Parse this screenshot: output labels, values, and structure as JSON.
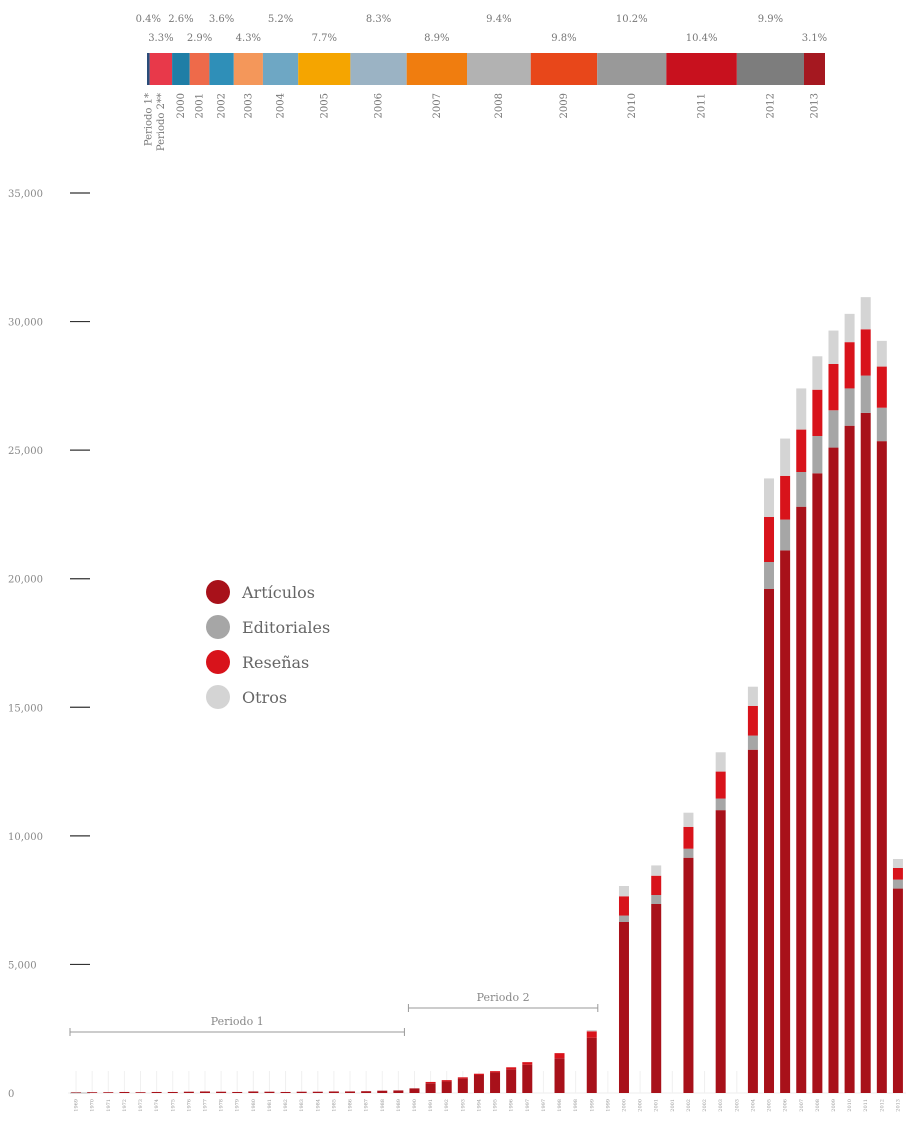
{
  "chart_data": [
    {
      "type": "bar",
      "orientation": "horizontal-stacked-100",
      "segments": [
        {
          "label": "Periodo 1*",
          "percent": "0.4%",
          "value": 0.4,
          "color": "#2a4d7a"
        },
        {
          "label": "Periodo 2**",
          "percent": "3.3%",
          "value": 3.3,
          "color": "#e8394a"
        },
        {
          "label": "2000",
          "percent": "2.6%",
          "value": 2.6,
          "color": "#1f7ea6"
        },
        {
          "label": "2001",
          "percent": "2.9%",
          "value": 2.9,
          "color": "#ee6a4a"
        },
        {
          "label": "2002",
          "percent": "3.6%",
          "value": 3.6,
          "color": "#2f8fb8"
        },
        {
          "label": "2003",
          "percent": "4.3%",
          "value": 4.3,
          "color": "#f4975a"
        },
        {
          "label": "2004",
          "percent": "5.2%",
          "value": 5.2,
          "color": "#6ea7c4"
        },
        {
          "label": "2005",
          "percent": "7.7%",
          "value": 7.7,
          "color": "#f5a500"
        },
        {
          "label": "2006",
          "percent": "8.3%",
          "value": 8.3,
          "color": "#9bb3c4"
        },
        {
          "label": "2007",
          "percent": "8.9%",
          "value": 8.9,
          "color": "#f07d0f"
        },
        {
          "label": "2008",
          "percent": "9.4%",
          "value": 9.4,
          "color": "#b2b2b2"
        },
        {
          "label": "2009",
          "percent": "9.8%",
          "value": 9.8,
          "color": "#e8471a"
        },
        {
          "label": "2010",
          "percent": "10.2%",
          "value": 10.2,
          "color": "#999999"
        },
        {
          "label": "2011",
          "percent": "10.4%",
          "value": 10.4,
          "color": "#c8111e"
        },
        {
          "label": "2012",
          "percent": "9.9%",
          "value": 9.9,
          "color": "#7d7d7d"
        },
        {
          "label": "2013",
          "percent": "3.1%",
          "value": 3.1,
          "color": "#a51820"
        }
      ]
    },
    {
      "type": "bar",
      "stacked": true,
      "categories": [
        "1969",
        "1970",
        "1971",
        "1972",
        "1973",
        "1974",
        "1975",
        "1976",
        "1977",
        "1978",
        "1979",
        "1980",
        "1981",
        "1982",
        "1983",
        "1984",
        "1985",
        "1986",
        "1987",
        "1988",
        "1989",
        "1990",
        "1991",
        "1992",
        "1993",
        "1994",
        "1995",
        "1996",
        "1997",
        "1997",
        "1998",
        "1998",
        "1999",
        "1999",
        "2000",
        "2000",
        "2001",
        "2001",
        "2002",
        "2002",
        "2003",
        "2003",
        "2004",
        "2005",
        "2006",
        "2007",
        "2008",
        "2009",
        "2010",
        "2011",
        "2012",
        "2013"
      ],
      "series": [
        {
          "name": "Artículos",
          "color": "#a8111a",
          "values": [
            20,
            30,
            30,
            40,
            30,
            40,
            40,
            50,
            60,
            50,
            40,
            60,
            50,
            40,
            50,
            50,
            60,
            60,
            70,
            90,
            100,
            180,
            380,
            450,
            560,
            700,
            800,
            920,
            1100,
            0,
            1350,
            0,
            2150,
            0,
            6650,
            0,
            7350,
            0,
            9150,
            0,
            11000,
            0,
            13350,
            19600,
            21100,
            22800,
            24100,
            25100,
            25950,
            26450,
            25350,
            7950
          ]
        },
        {
          "name": "Editoriales",
          "color": "#a6a6a6",
          "values": [
            0,
            0,
            0,
            0,
            0,
            0,
            0,
            0,
            0,
            0,
            0,
            0,
            0,
            0,
            0,
            0,
            0,
            0,
            0,
            0,
            0,
            0,
            0,
            0,
            0,
            0,
            0,
            0,
            0,
            0,
            0,
            0,
            0,
            0,
            250,
            0,
            350,
            0,
            350,
            0,
            450,
            0,
            550,
            1050,
            1200,
            1350,
            1450,
            1450,
            1450,
            1450,
            1300,
            350
          ]
        },
        {
          "name": "Reseñas",
          "color": "#d8131b",
          "values": [
            0,
            0,
            0,
            0,
            0,
            0,
            0,
            0,
            0,
            0,
            0,
            0,
            0,
            0,
            0,
            0,
            0,
            0,
            0,
            0,
            0,
            0,
            50,
            50,
            50,
            50,
            50,
            80,
            100,
            0,
            200,
            0,
            250,
            0,
            750,
            0,
            750,
            0,
            850,
            0,
            1050,
            0,
            1150,
            1750,
            1700,
            1650,
            1800,
            1800,
            1800,
            1800,
            1600,
            450
          ]
        },
        {
          "name": "Otros",
          "color": "#d4d4d4",
          "values": [
            0,
            0,
            0,
            0,
            0,
            0,
            0,
            0,
            0,
            0,
            0,
            0,
            0,
            0,
            0,
            0,
            0,
            0,
            0,
            0,
            0,
            0,
            0,
            0,
            0,
            0,
            0,
            0,
            0,
            0,
            0,
            0,
            50,
            0,
            400,
            0,
            400,
            0,
            550,
            0,
            750,
            0,
            750,
            1500,
            1450,
            1600,
            1300,
            1300,
            1100,
            1250,
            1000,
            350
          ]
        }
      ],
      "ylim": [
        0,
        35000
      ],
      "yticks": [
        "0",
        "5,000",
        "10,000",
        "15,000",
        "20,000",
        "25,000",
        "30,000",
        "35,000"
      ],
      "legend_position": "left-middle",
      "annotations": [
        {
          "label": "Periodo 1",
          "x_from": "1969",
          "x_to": "1989"
        },
        {
          "label": "Periodo 2",
          "x_from": "1990",
          "x_to": "1999"
        }
      ]
    }
  ]
}
